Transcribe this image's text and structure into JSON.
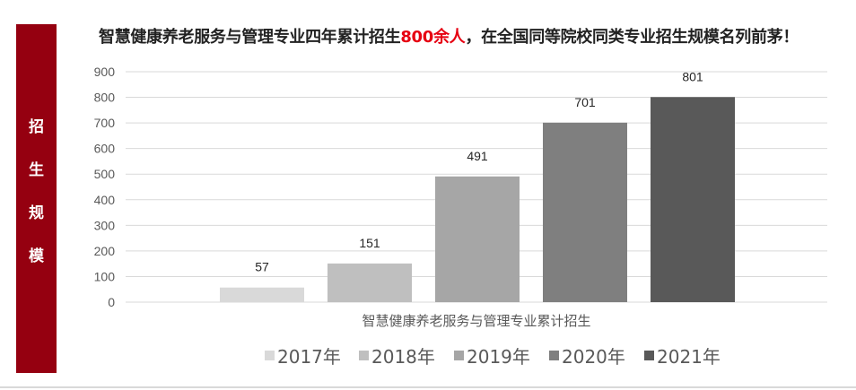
{
  "sidebar": {
    "label": "招生规模",
    "chars": [
      "招",
      "生",
      "规",
      "模"
    ],
    "color": "#950010"
  },
  "headline": {
    "before": "智慧健康养老服务与管理专业四年累计招生",
    "highlight": "800余人",
    "after": "，在全国同等院校同类专业招生规模名列前茅！",
    "highlight_color": "#e60012"
  },
  "chart_data": {
    "type": "bar",
    "categories": [
      "2017年",
      "2018年",
      "2019年",
      "2020年",
      "2021年"
    ],
    "values": [
      57,
      151,
      491,
      701,
      801
    ],
    "colors": [
      "#d9d9d9",
      "#bfbfbf",
      "#a6a6a6",
      "#7f7f7f",
      "#595959"
    ],
    "xlabel": "智慧健康养老服务与管理专业累计招生",
    "ylim": [
      0,
      900
    ],
    "yticks": [
      0,
      100,
      200,
      300,
      400,
      500,
      600,
      700,
      800,
      900
    ],
    "grid": true,
    "legend": "bottom",
    "data_labels": true
  }
}
